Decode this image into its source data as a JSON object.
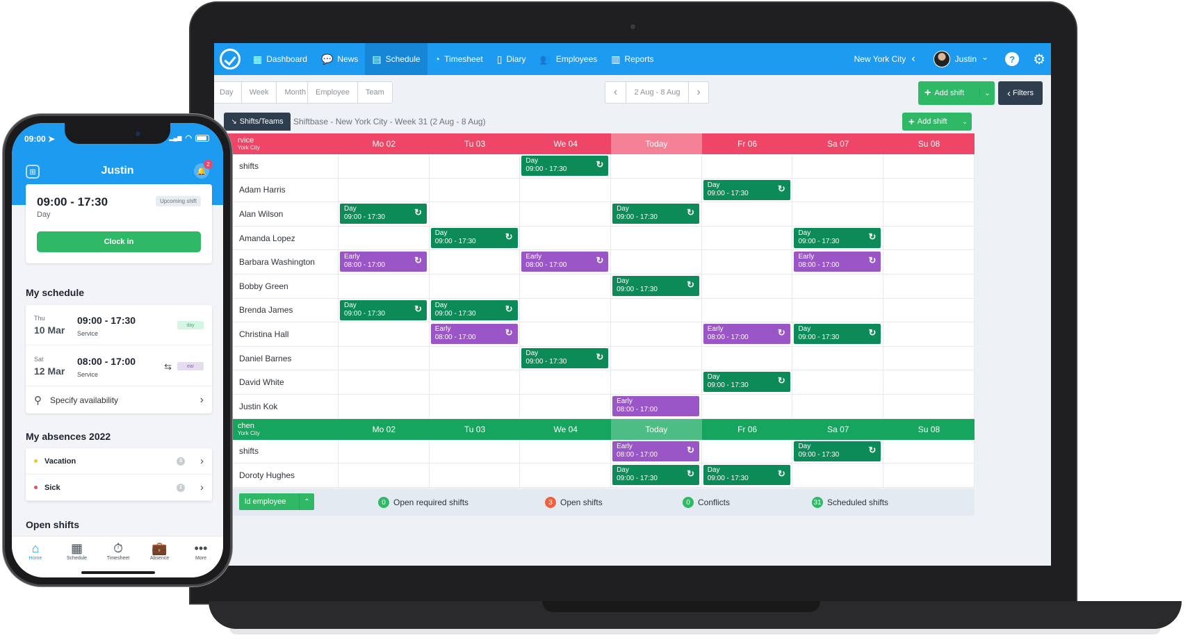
{
  "laptop": {
    "nav": {
      "items": [
        {
          "label": "Dashboard",
          "icon": "grid-icon",
          "glyph": "▦"
        },
        {
          "label": "News",
          "icon": "chat-bubble-icon",
          "glyph": "💬"
        },
        {
          "label": "Schedule",
          "icon": "calendar-icon",
          "glyph": "▤"
        },
        {
          "label": "Timesheet",
          "icon": "pie-clock-icon",
          "glyph": "◔"
        },
        {
          "label": "Diary",
          "icon": "document-icon",
          "glyph": "▯"
        },
        {
          "label": "Employees",
          "icon": "people-icon",
          "glyph": "👥"
        },
        {
          "label": "Reports",
          "icon": "bar-chart-icon",
          "glyph": "▥"
        }
      ],
      "active_index": 2,
      "city": "New York City",
      "user": "Justin",
      "help_glyph": "?",
      "gear_glyph": "⚙",
      "chev_left": "‹",
      "chev_down": "⌄"
    },
    "toolbar": {
      "views": [
        "Day",
        "Week",
        "Month"
      ],
      "groups": [
        "Employee",
        "Team"
      ],
      "prev": "‹",
      "next": "›",
      "date_range": "2 Aug - 8 Aug",
      "add_shift": "Add shift",
      "plus": "+",
      "caret": "⌄",
      "filters": "Filters",
      "filters_chev": "‹"
    },
    "schedule": {
      "chip": "Shifts/Teams",
      "chip_icon": "↘",
      "title": "Shiftbase - New York City - Week 31 (2 Aug - 8 Aug)",
      "add_shift": "Add shift",
      "plus": "+",
      "caret": "⌄",
      "repeat_glyph": "↻",
      "sections": [
        {
          "name": "rvice",
          "location": "York City",
          "color": "red",
          "days": [
            "Mo 02",
            "Tu 03",
            "We 04",
            "Today",
            "Fr 06",
            "Sa 07",
            "Su 08"
          ],
          "rows": [
            {
              "name": "shifts",
              "shifts": [
                null,
                null,
                {
                  "type": "Day",
                  "time": "09:00 - 17:30",
                  "color": "green"
                },
                null,
                null,
                null,
                null
              ]
            },
            {
              "name": "Adam Harris",
              "shifts": [
                null,
                null,
                null,
                null,
                {
                  "type": "Day",
                  "time": "09:00 - 17:30",
                  "color": "green"
                },
                null,
                null
              ]
            },
            {
              "name": "Alan Wilson",
              "shifts": [
                {
                  "type": "Day",
                  "time": "09:00 - 17:30",
                  "color": "green"
                },
                null,
                null,
                {
                  "type": "Day",
                  "time": "09:00 - 17:30",
                  "color": "green"
                },
                null,
                null,
                null
              ]
            },
            {
              "name": "Amanda Lopez",
              "shifts": [
                null,
                {
                  "type": "Day",
                  "time": "09:00 - 17:30",
                  "color": "green"
                },
                null,
                null,
                null,
                {
                  "type": "Day",
                  "time": "09:00 - 17:30",
                  "color": "green"
                },
                null
              ]
            },
            {
              "name": "Barbara Washington",
              "shifts": [
                {
                  "type": "Early",
                  "time": "08:00 - 17:00",
                  "color": "purple"
                },
                null,
                {
                  "type": "Early",
                  "time": "08:00 - 17:00",
                  "color": "purple"
                },
                null,
                null,
                {
                  "type": "Early",
                  "time": "08:00 - 17:00",
                  "color": "purple"
                },
                null
              ]
            },
            {
              "name": "Bobby Green",
              "shifts": [
                null,
                null,
                null,
                {
                  "type": "Day",
                  "time": "09:00 - 17:30",
                  "color": "green"
                },
                null,
                null,
                null
              ]
            },
            {
              "name": "Brenda James",
              "shifts": [
                {
                  "type": "Day",
                  "time": "09:00 - 17:30",
                  "color": "green"
                },
                {
                  "type": "Day",
                  "time": "09:00 - 17:30",
                  "color": "green"
                },
                null,
                null,
                null,
                null,
                null
              ]
            },
            {
              "name": "Christina Hall",
              "shifts": [
                null,
                {
                  "type": "Early",
                  "time": "08:00 - 17:00",
                  "color": "purple"
                },
                null,
                null,
                {
                  "type": "Early",
                  "time": "08:00 - 17:00",
                  "color": "purple"
                },
                {
                  "type": "Day",
                  "time": "09:00 - 17:30",
                  "color": "green"
                },
                null
              ]
            },
            {
              "name": "Daniel Barnes",
              "shifts": [
                null,
                null,
                {
                  "type": "Day",
                  "time": "09:00 - 17:30",
                  "color": "green"
                },
                null,
                null,
                null,
                null
              ]
            },
            {
              "name": "David White",
              "shifts": [
                null,
                null,
                null,
                null,
                {
                  "type": "Day",
                  "time": "09:00 - 17:30",
                  "color": "green"
                },
                null,
                null
              ]
            },
            {
              "name": "Justin Kok",
              "shifts": [
                null,
                null,
                null,
                {
                  "type": "Early",
                  "time": "08:00 - 17:00",
                  "color": "purple",
                  "norepeat": true
                },
                null,
                null,
                null
              ]
            }
          ]
        },
        {
          "name": "chen",
          "location": "York City",
          "color": "green",
          "days": [
            "Mo 02",
            "Tu 03",
            "We 04",
            "Today",
            "Fr 06",
            "Sa 07",
            "Su 08"
          ],
          "rows": [
            {
              "name": "shifts",
              "shifts": [
                null,
                null,
                null,
                {
                  "type": "Early",
                  "time": "08:00 - 17:00",
                  "color": "purple"
                },
                null,
                {
                  "type": "Day",
                  "time": "09:00 - 17:30",
                  "color": "green"
                },
                null
              ]
            },
            {
              "name": "Doroty Hughes",
              "shifts": [
                null,
                null,
                null,
                {
                  "type": "Day",
                  "time": "09:00 - 17:30",
                  "color": "green"
                },
                {
                  "type": "Day",
                  "time": "09:00 - 17:30",
                  "color": "green"
                },
                null,
                null
              ]
            }
          ]
        }
      ],
      "footer": {
        "add_employee": "ld employee",
        "caret": "⌃",
        "stats": [
          {
            "count": "0",
            "label": "Open required shifts",
            "color": "#2fb866"
          },
          {
            "count": "3",
            "label": "Open shifts",
            "color": "#f0603c"
          },
          {
            "count": "0",
            "label": "Conflicts",
            "color": "#2fb866"
          },
          {
            "count": "31",
            "label": "Scheduled shifts",
            "color": "#2fb866"
          }
        ]
      }
    }
  },
  "phone": {
    "status_time": "09:00 ➤",
    "signal": "▂▄▆",
    "wifi": "◠",
    "grid_glyph": "⊞",
    "user": "Justin",
    "bell_glyph": "🔔",
    "notif_count": "2",
    "upcoming": {
      "time": "09:00 - 17:30",
      "type": "Day",
      "badge": "Upcoming shift",
      "button": "Clock in"
    },
    "my_schedule": {
      "title": "My schedule",
      "items": [
        {
          "dow": "Thu",
          "date": "10 Mar",
          "time": "09:00 - 17:30",
          "team": "Service",
          "tag": "day",
          "tag_bg": "#d7f5e5",
          "tag_fg": "#2fb866",
          "swap": ""
        },
        {
          "dow": "Sat",
          "date": "12 Mar",
          "time": "08:00 - 17:00",
          "team": "Service",
          "tag": "ear",
          "tag_bg": "#e6dcef",
          "tag_fg": "#9a55c7",
          "swap": "⇆"
        }
      ],
      "availability": "Specify availability",
      "availability_icon": "⚲",
      "chev": "›"
    },
    "absences": {
      "title": "My absences 2022",
      "items": [
        {
          "label": "Vacation",
          "count": "3",
          "dot": "#f5c518"
        },
        {
          "label": "Sick",
          "count": "1",
          "dot": "#ef4566"
        }
      ],
      "chev": "›"
    },
    "open_shifts_title": "Open shifts",
    "tabs": [
      {
        "label": "Home",
        "glyph": "⌂",
        "icon": "home-icon"
      },
      {
        "label": "Schedule",
        "glyph": "▦",
        "icon": "calendar-icon"
      },
      {
        "label": "Timesheet",
        "glyph": "⏱",
        "icon": "stopwatch-icon"
      },
      {
        "label": "Absence",
        "glyph": "💼",
        "icon": "briefcase-icon"
      },
      {
        "label": "More",
        "glyph": "•••",
        "icon": "more-icon"
      }
    ],
    "active_tab": 0
  }
}
